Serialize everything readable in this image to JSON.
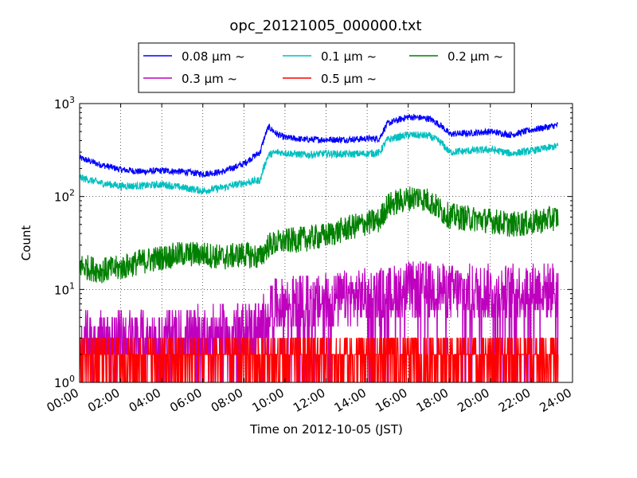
{
  "chart_data": {
    "type": "line",
    "title": "opc_20121005_000000.txt",
    "xlabel": "Time on 2012-10-05 (JST)",
    "ylabel": "Count",
    "x_unit": "hour",
    "xlim": [
      0,
      24
    ],
    "ylim": [
      1,
      1000
    ],
    "y_scale": "log",
    "grid": true,
    "legend_position": "top-center",
    "x_ticks": [
      {
        "value": 0,
        "label": "00:00"
      },
      {
        "value": 2,
        "label": "02:00"
      },
      {
        "value": 4,
        "label": "04:00"
      },
      {
        "value": 6,
        "label": "06:00"
      },
      {
        "value": 8,
        "label": "08:00"
      },
      {
        "value": 10,
        "label": "10:00"
      },
      {
        "value": 12,
        "label": "12:00"
      },
      {
        "value": 14,
        "label": "14:00"
      },
      {
        "value": 16,
        "label": "16:00"
      },
      {
        "value": 18,
        "label": "18:00"
      },
      {
        "value": 20,
        "label": "20:00"
      },
      {
        "value": 22,
        "label": "22:00"
      },
      {
        "value": 24,
        "label": "24:00"
      }
    ],
    "y_ticks": [
      {
        "value": 1,
        "base": "10",
        "exp": "0"
      },
      {
        "value": 10,
        "base": "10",
        "exp": "1"
      },
      {
        "value": 100,
        "base": "10",
        "exp": "2"
      },
      {
        "value": 1000,
        "base": "10",
        "exp": "3"
      }
    ],
    "series": [
      {
        "name": "0.08 μm ~",
        "color": "#0000ff",
        "x": [
          0,
          1,
          2,
          3,
          4,
          5,
          6,
          7,
          8,
          8.8,
          9.2,
          9.6,
          10,
          11,
          12,
          13,
          14,
          14.6,
          15,
          16,
          17,
          17.6,
          18,
          19,
          20,
          21,
          22,
          23,
          23.3
        ],
        "y": [
          260,
          220,
          195,
          185,
          190,
          185,
          175,
          185,
          225,
          300,
          560,
          470,
          430,
          410,
          410,
          410,
          420,
          420,
          610,
          720,
          690,
          580,
          470,
          480,
          500,
          460,
          520,
          570,
          590
        ]
      },
      {
        "name": "0.1 μm ~",
        "color": "#00bfbf",
        "x": [
          0,
          1,
          2,
          3,
          4,
          5,
          6,
          7,
          8,
          8.8,
          9.2,
          9.6,
          10,
          11,
          12,
          13,
          14,
          14.6,
          15,
          16,
          17,
          17.6,
          18,
          19,
          20,
          21,
          22,
          23,
          23.3
        ],
        "y": [
          160,
          140,
          130,
          130,
          135,
          125,
          115,
          125,
          140,
          150,
          280,
          300,
          295,
          280,
          290,
          285,
          290,
          295,
          410,
          460,
          450,
          380,
          300,
          310,
          320,
          290,
          310,
          340,
          350
        ]
      },
      {
        "name": "0.2 μm ~",
        "color": "#008000",
        "x": [
          0,
          1,
          2,
          3,
          4,
          5,
          6,
          7,
          8,
          8.8,
          9.2,
          10,
          11,
          12,
          13,
          14,
          14.6,
          15,
          16,
          16.5,
          17,
          17.6,
          18,
          19,
          20,
          21,
          22,
          23,
          23.3
        ],
        "y": [
          18,
          16,
          17,
          20,
          22,
          24,
          24,
          22,
          24,
          22,
          30,
          33,
          35,
          38,
          45,
          52,
          55,
          80,
          95,
          100,
          90,
          70,
          62,
          58,
          55,
          50,
          52,
          58,
          60
        ]
      },
      {
        "name": "0.3 μm ~",
        "color": "#bf00bf",
        "x": [
          0,
          1,
          2,
          3,
          4,
          5,
          6,
          7,
          8,
          8.8,
          9.2,
          10,
          11,
          12,
          13,
          14,
          15,
          16,
          17,
          18,
          19,
          20,
          21,
          22,
          23,
          23.3
        ],
        "y": [
          3,
          3,
          3,
          3,
          3,
          3.2,
          3.4,
          3.4,
          3.6,
          3.8,
          6.5,
          7,
          7.2,
          7.5,
          8,
          8.5,
          9,
          10,
          10,
          9.5,
          9.5,
          9.5,
          9.5,
          10,
          10,
          10
        ]
      },
      {
        "name": "0.5 μm ~",
        "color": "#ff0000",
        "x": [
          0,
          2,
          4,
          6,
          8,
          9.2,
          10,
          12,
          14,
          16,
          18,
          20,
          22,
          23.3
        ],
        "y": [
          1.3,
          1.3,
          1.3,
          1.3,
          1.3,
          1.6,
          1.6,
          1.6,
          1.6,
          1.7,
          1.7,
          1.7,
          1.7,
          1.7
        ]
      }
    ]
  }
}
